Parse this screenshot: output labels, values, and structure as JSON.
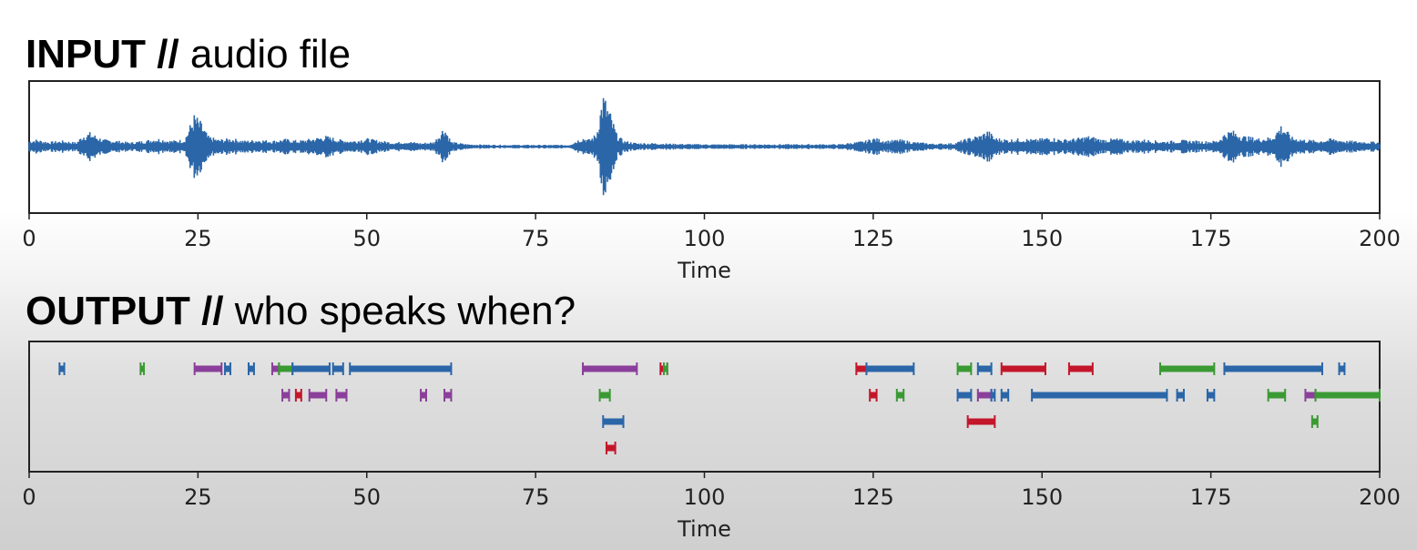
{
  "input_section": {
    "heading_strong": "INPUT //",
    "heading_light": "audio file"
  },
  "output_section": {
    "heading_strong": "OUTPUT //",
    "heading_light": "who speaks when?"
  },
  "chart_data": [
    {
      "type": "line",
      "xlabel": "Time",
      "xlim": [
        0,
        200
      ],
      "xticks": [
        0,
        25,
        50,
        75,
        100,
        125,
        150,
        175,
        200
      ],
      "color": "#2a66a8",
      "envelope": [
        {
          "t": 0,
          "a": 0.1
        },
        {
          "t": 1,
          "a": 0.12
        },
        {
          "t": 3,
          "a": 0.08
        },
        {
          "t": 5,
          "a": 0.1
        },
        {
          "t": 7,
          "a": 0.07
        },
        {
          "t": 8,
          "a": 0.2
        },
        {
          "t": 9,
          "a": 0.24
        },
        {
          "t": 10,
          "a": 0.18
        },
        {
          "t": 11,
          "a": 0.12
        },
        {
          "t": 13,
          "a": 0.1
        },
        {
          "t": 15,
          "a": 0.07
        },
        {
          "t": 17,
          "a": 0.1
        },
        {
          "t": 19,
          "a": 0.14
        },
        {
          "t": 21,
          "a": 0.1
        },
        {
          "t": 23,
          "a": 0.12
        },
        {
          "t": 24.5,
          "a": 0.55
        },
        {
          "t": 25.5,
          "a": 0.4
        },
        {
          "t": 26.5,
          "a": 0.18
        },
        {
          "t": 28,
          "a": 0.12
        },
        {
          "t": 30,
          "a": 0.14
        },
        {
          "t": 32,
          "a": 0.1
        },
        {
          "t": 34,
          "a": 0.12
        },
        {
          "t": 36,
          "a": 0.1
        },
        {
          "t": 38,
          "a": 0.13
        },
        {
          "t": 40,
          "a": 0.1
        },
        {
          "t": 42,
          "a": 0.14
        },
        {
          "t": 44,
          "a": 0.18
        },
        {
          "t": 46,
          "a": 0.12
        },
        {
          "t": 48,
          "a": 0.1
        },
        {
          "t": 50,
          "a": 0.14
        },
        {
          "t": 52,
          "a": 0.1
        },
        {
          "t": 54,
          "a": 0.07
        },
        {
          "t": 56,
          "a": 0.09
        },
        {
          "t": 58,
          "a": 0.06
        },
        {
          "t": 60,
          "a": 0.08
        },
        {
          "t": 61.5,
          "a": 0.35
        },
        {
          "t": 62.5,
          "a": 0.08
        },
        {
          "t": 65,
          "a": 0.04
        },
        {
          "t": 70,
          "a": 0.03
        },
        {
          "t": 75,
          "a": 0.03
        },
        {
          "t": 80,
          "a": 0.03
        },
        {
          "t": 81,
          "a": 0.1
        },
        {
          "t": 82,
          "a": 0.16
        },
        {
          "t": 83,
          "a": 0.12
        },
        {
          "t": 84,
          "a": 0.22
        },
        {
          "t": 85,
          "a": 0.9
        },
        {
          "t": 86,
          "a": 0.6
        },
        {
          "t": 87,
          "a": 0.22
        },
        {
          "t": 88,
          "a": 0.1
        },
        {
          "t": 90,
          "a": 0.06
        },
        {
          "t": 93,
          "a": 0.06
        },
        {
          "t": 95,
          "a": 0.05
        },
        {
          "t": 100,
          "a": 0.04
        },
        {
          "t": 110,
          "a": 0.04
        },
        {
          "t": 120,
          "a": 0.04
        },
        {
          "t": 124,
          "a": 0.1
        },
        {
          "t": 125,
          "a": 0.15
        },
        {
          "t": 127,
          "a": 0.1
        },
        {
          "t": 129,
          "a": 0.12
        },
        {
          "t": 131,
          "a": 0.08
        },
        {
          "t": 134,
          "a": 0.05
        },
        {
          "t": 137,
          "a": 0.06
        },
        {
          "t": 139,
          "a": 0.14
        },
        {
          "t": 141,
          "a": 0.2
        },
        {
          "t": 142,
          "a": 0.28
        },
        {
          "t": 143,
          "a": 0.15
        },
        {
          "t": 145,
          "a": 0.12
        },
        {
          "t": 147,
          "a": 0.14
        },
        {
          "t": 149,
          "a": 0.12
        },
        {
          "t": 151,
          "a": 0.16
        },
        {
          "t": 153,
          "a": 0.12
        },
        {
          "t": 155,
          "a": 0.14
        },
        {
          "t": 157,
          "a": 0.18
        },
        {
          "t": 159,
          "a": 0.12
        },
        {
          "t": 161,
          "a": 0.14
        },
        {
          "t": 163,
          "a": 0.1
        },
        {
          "t": 165,
          "a": 0.12
        },
        {
          "t": 168,
          "a": 0.09
        },
        {
          "t": 171,
          "a": 0.11
        },
        {
          "t": 174,
          "a": 0.09
        },
        {
          "t": 176,
          "a": 0.1
        },
        {
          "t": 177,
          "a": 0.22
        },
        {
          "t": 178,
          "a": 0.28
        },
        {
          "t": 180,
          "a": 0.18
        },
        {
          "t": 182,
          "a": 0.14
        },
        {
          "t": 184,
          "a": 0.16
        },
        {
          "t": 185.5,
          "a": 0.38
        },
        {
          "t": 187,
          "a": 0.16
        },
        {
          "t": 189,
          "a": 0.12
        },
        {
          "t": 191,
          "a": 0.1
        },
        {
          "t": 193,
          "a": 0.14
        },
        {
          "t": 195,
          "a": 0.1
        },
        {
          "t": 197,
          "a": 0.09
        },
        {
          "t": 200,
          "a": 0.08
        }
      ]
    },
    {
      "type": "timeline",
      "xlabel": "Time",
      "xlim": [
        0,
        200
      ],
      "xticks": [
        0,
        25,
        50,
        75,
        100,
        125,
        150,
        175,
        200
      ],
      "speaker_colors": {
        "blue": "#2a66a8",
        "green": "#3a9a33",
        "purple": "#8a3f9a",
        "red": "#c4162a"
      },
      "segments": [
        {
          "row": 0,
          "start": 4.5,
          "end": 5.2,
          "color": "blue"
        },
        {
          "row": 0,
          "start": 16.5,
          "end": 17.0,
          "color": "green"
        },
        {
          "row": 0,
          "start": 24.5,
          "end": 28.5,
          "color": "purple"
        },
        {
          "row": 0,
          "start": 29.0,
          "end": 29.8,
          "color": "blue"
        },
        {
          "row": 0,
          "start": 32.5,
          "end": 33.3,
          "color": "blue"
        },
        {
          "row": 0,
          "start": 36.0,
          "end": 37.0,
          "color": "purple"
        },
        {
          "row": 0,
          "start": 37.0,
          "end": 39.0,
          "color": "green"
        },
        {
          "row": 0,
          "start": 39.0,
          "end": 44.5,
          "color": "blue"
        },
        {
          "row": 0,
          "start": 45.0,
          "end": 46.5,
          "color": "blue"
        },
        {
          "row": 0,
          "start": 47.5,
          "end": 62.5,
          "color": "blue"
        },
        {
          "row": 0,
          "start": 82.0,
          "end": 90.0,
          "color": "purple"
        },
        {
          "row": 0,
          "start": 93.5,
          "end": 94.5,
          "color": "red"
        },
        {
          "row": 0,
          "start": 94.0,
          "end": 94.5,
          "color": "green"
        },
        {
          "row": 0,
          "start": 122.5,
          "end": 124.0,
          "color": "red"
        },
        {
          "row": 0,
          "start": 124.0,
          "end": 131.0,
          "color": "blue"
        },
        {
          "row": 0,
          "start": 137.5,
          "end": 139.5,
          "color": "green"
        },
        {
          "row": 0,
          "start": 140.5,
          "end": 142.5,
          "color": "blue"
        },
        {
          "row": 0,
          "start": 144.0,
          "end": 150.5,
          "color": "red"
        },
        {
          "row": 0,
          "start": 154.0,
          "end": 157.5,
          "color": "red"
        },
        {
          "row": 0,
          "start": 167.5,
          "end": 175.5,
          "color": "green"
        },
        {
          "row": 0,
          "start": 177.0,
          "end": 191.5,
          "color": "blue"
        },
        {
          "row": 0,
          "start": 194.0,
          "end": 194.8,
          "color": "blue"
        },
        {
          "row": 1,
          "start": 37.5,
          "end": 38.5,
          "color": "purple"
        },
        {
          "row": 1,
          "start": 39.5,
          "end": 40.3,
          "color": "red"
        },
        {
          "row": 1,
          "start": 41.5,
          "end": 44.0,
          "color": "purple"
        },
        {
          "row": 1,
          "start": 45.5,
          "end": 47.0,
          "color": "purple"
        },
        {
          "row": 1,
          "start": 58.0,
          "end": 58.8,
          "color": "purple"
        },
        {
          "row": 1,
          "start": 61.5,
          "end": 62.5,
          "color": "purple"
        },
        {
          "row": 1,
          "start": 84.5,
          "end": 86.0,
          "color": "green"
        },
        {
          "row": 1,
          "start": 124.5,
          "end": 125.5,
          "color": "red"
        },
        {
          "row": 1,
          "start": 128.5,
          "end": 129.5,
          "color": "green"
        },
        {
          "row": 1,
          "start": 137.5,
          "end": 139.5,
          "color": "blue"
        },
        {
          "row": 1,
          "start": 140.5,
          "end": 142.5,
          "color": "purple"
        },
        {
          "row": 1,
          "start": 142.5,
          "end": 143.0,
          "color": "blue"
        },
        {
          "row": 1,
          "start": 144.0,
          "end": 145.0,
          "color": "blue"
        },
        {
          "row": 1,
          "start": 148.5,
          "end": 168.5,
          "color": "blue"
        },
        {
          "row": 1,
          "start": 170.0,
          "end": 171.0,
          "color": "blue"
        },
        {
          "row": 1,
          "start": 174.5,
          "end": 175.5,
          "color": "blue"
        },
        {
          "row": 1,
          "start": 183.5,
          "end": 186.0,
          "color": "green"
        },
        {
          "row": 1,
          "start": 189.0,
          "end": 190.5,
          "color": "purple"
        },
        {
          "row": 1,
          "start": 190.5,
          "end": 200.0,
          "color": "green"
        },
        {
          "row": 2,
          "start": 85.0,
          "end": 88.0,
          "color": "blue"
        },
        {
          "row": 2,
          "start": 139.0,
          "end": 143.0,
          "color": "red"
        },
        {
          "row": 2,
          "start": 190.0,
          "end": 190.8,
          "color": "green"
        },
        {
          "row": 3,
          "start": 85.5,
          "end": 86.8,
          "color": "red"
        }
      ]
    }
  ]
}
